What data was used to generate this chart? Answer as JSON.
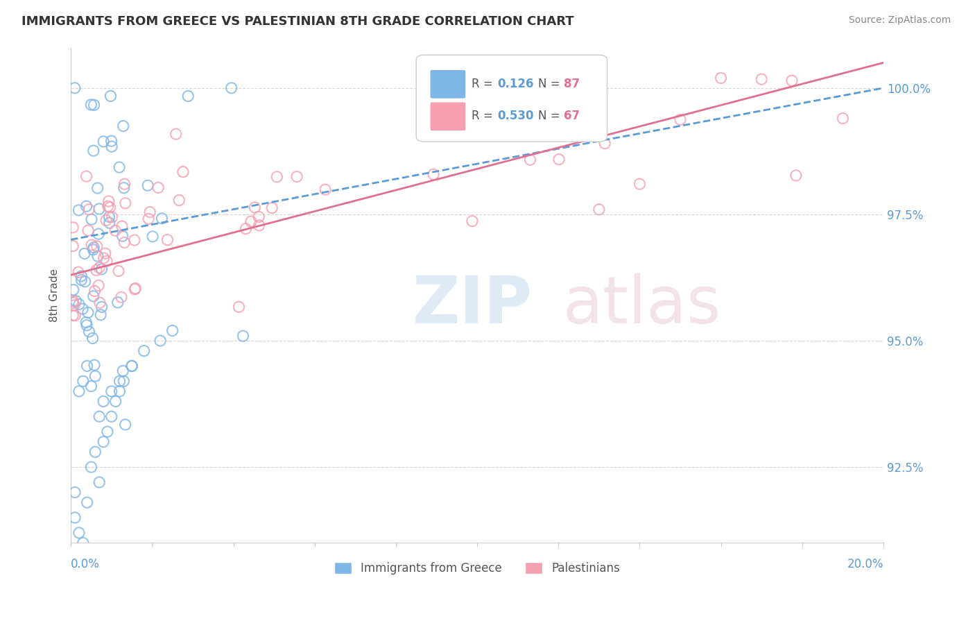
{
  "title": "IMMIGRANTS FROM GREECE VS PALESTINIAN 8TH GRADE CORRELATION CHART",
  "source": "Source: ZipAtlas.com",
  "ylabel": "8th Grade",
  "blue_color": "#7EB6E8",
  "pink_color": "#F4A0B0",
  "trend_blue_color": "#5B9BD5",
  "trend_pink_color": "#E07090",
  "xmin": 0.0,
  "xmax": 0.2,
  "ymin": 0.91,
  "ymax": 1.008,
  "right_yticks": [
    0.925,
    0.95,
    0.975,
    1.0
  ],
  "right_ytick_labels": [
    "92.5%",
    "95.0%",
    "97.5%",
    "100.0%"
  ]
}
